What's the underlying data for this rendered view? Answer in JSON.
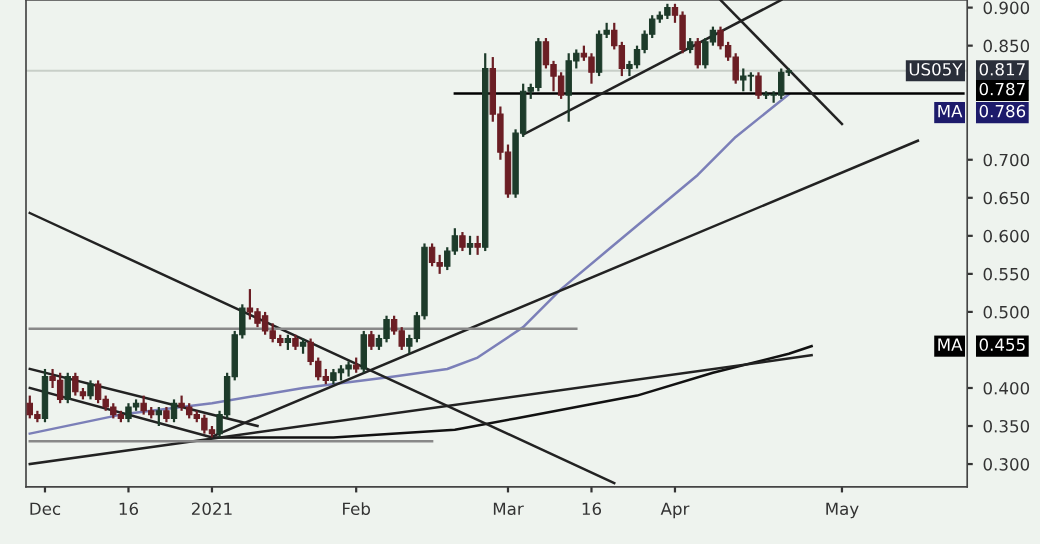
{
  "chart_data": {
    "type": "candlestick",
    "categories": [
      null,
      null,
      "Dec",
      null,
      null,
      null,
      null,
      null,
      null,
      null,
      null,
      null,
      null,
      "16",
      null,
      null,
      null,
      null,
      null,
      null,
      null,
      null,
      null,
      null,
      "2021",
      null,
      null,
      null,
      null,
      null,
      null,
      null,
      null,
      null,
      null,
      null,
      null,
      null,
      null,
      null,
      null,
      null,
      null,
      "Feb",
      null,
      null,
      null,
      null,
      null,
      null,
      null,
      null,
      null,
      null,
      null,
      null,
      null,
      null,
      null,
      null,
      null,
      null,
      null,
      "Mar",
      null,
      null,
      null,
      null,
      null,
      null,
      null,
      null,
      null,
      null,
      "16",
      null,
      null,
      null,
      null,
      null,
      null,
      null,
      null,
      null,
      null,
      "Apr",
      null,
      null,
      null,
      null,
      null,
      null,
      null,
      null,
      null,
      null,
      null,
      null,
      null,
      null,
      null,
      null,
      null,
      null,
      null,
      null,
      null,
      "May",
      null,
      null,
      null,
      null,
      null,
      null,
      null,
      null,
      null,
      null,
      null,
      null,
      null,
      null,
      null,
      null
    ],
    "ohlc": [
      [
        0.38,
        0.39,
        0.36,
        0.365
      ],
      [
        0.365,
        0.37,
        0.355,
        0.36
      ],
      [
        0.36,
        0.425,
        0.355,
        0.415
      ],
      [
        0.415,
        0.425,
        0.4,
        0.41
      ],
      [
        0.41,
        0.42,
        0.38,
        0.385
      ],
      [
        0.385,
        0.42,
        0.38,
        0.415
      ],
      [
        0.415,
        0.42,
        0.39,
        0.395
      ],
      [
        0.395,
        0.4,
        0.385,
        0.39
      ],
      [
        0.39,
        0.41,
        0.385,
        0.405
      ],
      [
        0.405,
        0.41,
        0.38,
        0.385
      ],
      [
        0.385,
        0.39,
        0.37,
        0.375
      ],
      [
        0.375,
        0.38,
        0.36,
        0.365
      ],
      [
        0.365,
        0.37,
        0.355,
        0.36
      ],
      [
        0.36,
        0.38,
        0.355,
        0.375
      ],
      [
        0.375,
        0.385,
        0.37,
        0.38
      ],
      [
        0.38,
        0.39,
        0.365,
        0.37
      ],
      [
        0.37,
        0.375,
        0.36,
        0.365
      ],
      [
        0.365,
        0.375,
        0.35,
        0.37
      ],
      [
        0.37,
        0.375,
        0.355,
        0.36
      ],
      [
        0.36,
        0.385,
        0.355,
        0.38
      ],
      [
        0.38,
        0.39,
        0.37,
        0.375
      ],
      [
        0.375,
        0.38,
        0.36,
        0.365
      ],
      [
        0.365,
        0.37,
        0.355,
        0.36
      ],
      [
        0.36,
        0.365,
        0.34,
        0.345
      ],
      [
        0.345,
        0.35,
        0.335,
        0.34
      ],
      [
        0.34,
        0.37,
        0.335,
        0.365
      ],
      [
        0.365,
        0.42,
        0.36,
        0.415
      ],
      [
        0.415,
        0.475,
        0.41,
        0.47
      ],
      [
        0.47,
        0.51,
        0.465,
        0.505
      ],
      [
        0.505,
        0.53,
        0.49,
        0.5
      ],
      [
        0.5,
        0.505,
        0.48,
        0.485
      ],
      [
        0.495,
        0.5,
        0.47,
        0.475
      ],
      [
        0.475,
        0.485,
        0.46,
        0.465
      ],
      [
        0.465,
        0.47,
        0.455,
        0.46
      ],
      [
        0.46,
        0.47,
        0.45,
        0.465
      ],
      [
        0.465,
        0.47,
        0.45,
        0.455
      ],
      [
        0.455,
        0.465,
        0.445,
        0.46
      ],
      [
        0.46,
        0.465,
        0.43,
        0.435
      ],
      [
        0.435,
        0.44,
        0.41,
        0.415
      ],
      [
        0.415,
        0.425,
        0.405,
        0.41
      ],
      [
        0.41,
        0.425,
        0.405,
        0.42
      ],
      [
        0.42,
        0.43,
        0.41,
        0.425
      ],
      [
        0.425,
        0.435,
        0.415,
        0.43
      ],
      [
        0.43,
        0.44,
        0.42,
        0.425
      ],
      [
        0.425,
        0.475,
        0.42,
        0.47
      ],
      [
        0.47,
        0.475,
        0.45,
        0.455
      ],
      [
        0.455,
        0.47,
        0.45,
        0.465
      ],
      [
        0.465,
        0.495,
        0.46,
        0.49
      ],
      [
        0.49,
        0.495,
        0.47,
        0.475
      ],
      [
        0.475,
        0.48,
        0.45,
        0.455
      ],
      [
        0.455,
        0.47,
        0.445,
        0.465
      ],
      [
        0.465,
        0.5,
        0.46,
        0.495
      ],
      [
        0.495,
        0.59,
        0.49,
        0.585
      ],
      [
        0.585,
        0.59,
        0.56,
        0.565
      ],
      [
        0.565,
        0.575,
        0.55,
        0.56
      ],
      [
        0.56,
        0.585,
        0.555,
        0.58
      ],
      [
        0.58,
        0.61,
        0.575,
        0.6
      ],
      [
        0.6,
        0.605,
        0.58,
        0.585
      ],
      [
        0.585,
        0.6,
        0.575,
        0.59
      ],
      [
        0.59,
        0.6,
        0.575,
        0.585
      ],
      [
        0.585,
        0.84,
        0.58,
        0.82
      ],
      [
        0.82,
        0.835,
        0.75,
        0.76
      ],
      [
        0.76,
        0.77,
        0.7,
        0.71
      ],
      [
        0.71,
        0.72,
        0.65,
        0.655
      ],
      [
        0.655,
        0.74,
        0.65,
        0.735
      ],
      [
        0.735,
        0.8,
        0.73,
        0.79
      ],
      [
        0.79,
        0.8,
        0.78,
        0.795
      ],
      [
        0.795,
        0.86,
        0.79,
        0.855
      ],
      [
        0.855,
        0.86,
        0.82,
        0.825
      ],
      [
        0.825,
        0.83,
        0.79,
        0.81
      ],
      [
        0.81,
        0.815,
        0.78,
        0.785
      ],
      [
        0.785,
        0.84,
        0.75,
        0.83
      ],
      [
        0.83,
        0.845,
        0.82,
        0.84
      ],
      [
        0.84,
        0.85,
        0.83,
        0.835
      ],
      [
        0.835,
        0.84,
        0.8,
        0.815
      ],
      [
        0.815,
        0.87,
        0.81,
        0.865
      ],
      [
        0.865,
        0.88,
        0.86,
        0.87
      ],
      [
        0.87,
        0.88,
        0.845,
        0.85
      ],
      [
        0.85,
        0.855,
        0.81,
        0.82
      ],
      [
        0.82,
        0.83,
        0.81,
        0.825
      ],
      [
        0.825,
        0.85,
        0.82,
        0.845
      ],
      [
        0.845,
        0.87,
        0.84,
        0.865
      ],
      [
        0.865,
        0.89,
        0.86,
        0.885
      ],
      [
        0.885,
        0.895,
        0.88,
        0.89
      ],
      [
        0.89,
        0.905,
        0.885,
        0.9
      ],
      [
        0.9,
        0.905,
        0.88,
        0.89
      ],
      [
        0.89,
        0.895,
        0.84,
        0.845
      ],
      [
        0.845,
        0.86,
        0.84,
        0.855
      ],
      [
        0.855,
        0.86,
        0.82,
        0.825
      ],
      [
        0.825,
        0.86,
        0.82,
        0.855
      ],
      [
        0.855,
        0.875,
        0.85,
        0.87
      ],
      [
        0.87,
        0.875,
        0.845,
        0.85
      ],
      [
        0.85,
        0.855,
        0.83,
        0.835
      ],
      [
        0.835,
        0.84,
        0.8,
        0.805
      ],
      [
        0.805,
        0.82,
        0.79,
        0.81
      ],
      [
        0.81,
        0.815,
        0.79,
        0.81
      ],
      [
        0.81,
        0.815,
        0.78,
        0.785
      ],
      [
        0.785,
        0.79,
        0.78,
        0.785
      ],
      [
        0.785,
        0.79,
        0.775,
        0.785
      ],
      [
        0.785,
        0.82,
        0.78,
        0.815
      ],
      [
        0.815,
        0.82,
        0.81,
        0.817
      ],
      null,
      null,
      null,
      null,
      null,
      null,
      null,
      null,
      null,
      null,
      null,
      null,
      null,
      null,
      null,
      null,
      null,
      null,
      null,
      null,
      null,
      null,
      null
    ],
    "series": [
      {
        "type": "line",
        "color": "#7b7fb8",
        "values": [
          0.34,
          null,
          null,
          null,
          null,
          null,
          null,
          null,
          null,
          null,
          null,
          null,
          0.365,
          null,
          null,
          null,
          null,
          null,
          null,
          null,
          null,
          null,
          null,
          null,
          0.38,
          null,
          null,
          null,
          null,
          null,
          null,
          null,
          null,
          null,
          null,
          null,
          0.4,
          null,
          null,
          null,
          null,
          null,
          null,
          null,
          null,
          null,
          null,
          null,
          0.415,
          null,
          null,
          null,
          null,
          null,
          null,
          0.425,
          null,
          null,
          null,
          0.44,
          null,
          null,
          null,
          null,
          null,
          0.48,
          null,
          null,
          null,
          null,
          0.53,
          null,
          null,
          null,
          null,
          null,
          0.58,
          null,
          null,
          null,
          null,
          null,
          0.63,
          null,
          null,
          null,
          null,
          null,
          0.68,
          null,
          null,
          null,
          null,
          0.73,
          null,
          null,
          null,
          null,
          null,
          null,
          0.786,
          null,
          null,
          null,
          null,
          null,
          null,
          null,
          null,
          null,
          null,
          null,
          null,
          null,
          null,
          null,
          null,
          null,
          null,
          null,
          null,
          null,
          null,
          null
        ]
      },
      {
        "type": "line",
        "color": "#111111",
        "values": [
          null,
          null,
          null,
          null,
          null,
          null,
          null,
          null,
          null,
          null,
          null,
          null,
          null,
          null,
          null,
          null,
          null,
          null,
          null,
          null,
          null,
          null,
          null,
          null,
          0.335,
          null,
          null,
          null,
          null,
          null,
          null,
          null,
          null,
          null,
          null,
          null,
          null,
          null,
          null,
          null,
          0.335,
          null,
          null,
          null,
          null,
          null,
          null,
          null,
          null,
          null,
          null,
          null,
          null,
          null,
          null,
          null,
          0.345,
          null,
          null,
          null,
          null,
          null,
          null,
          null,
          0.36,
          null,
          null,
          null,
          null,
          null,
          null,
          null,
          0.375,
          null,
          null,
          null,
          null,
          null,
          null,
          null,
          0.39,
          null,
          null,
          null,
          null,
          null,
          null,
          null,
          null,
          null,
          0.42,
          null,
          null,
          null,
          null,
          null,
          null,
          null,
          null,
          null,
          0.445,
          null,
          null,
          0.455,
          null,
          null,
          null,
          null,
          null,
          null,
          null,
          null,
          null,
          null,
          null,
          null,
          null,
          null,
          null,
          null,
          null,
          null,
          null,
          null
        ]
      },
      {
        "type": "line",
        "color": "#000000",
        "values": [
          null,
          null,
          null,
          null,
          null,
          null,
          null,
          null,
          null,
          null,
          null,
          null,
          null,
          null,
          null,
          null,
          null,
          null,
          null,
          null,
          null,
          null,
          null,
          null,
          null,
          null,
          null,
          null,
          null,
          null,
          null,
          null,
          null,
          null,
          null,
          null,
          null,
          null,
          null,
          null,
          null,
          null,
          null,
          null,
          null,
          null,
          null,
          null,
          null,
          null,
          null,
          null,
          null,
          null,
          null,
          null,
          0.787,
          null,
          null,
          null,
          null,
          null,
          null,
          null,
          null,
          null,
          null,
          null,
          null,
          null,
          null,
          null,
          null,
          null,
          null,
          null,
          null,
          null,
          null,
          null,
          null,
          null,
          null,
          null,
          null,
          null,
          null,
          null,
          null,
          null,
          null,
          null,
          null,
          null,
          null,
          null,
          null,
          null,
          null,
          null,
          null,
          null,
          null,
          null,
          null,
          null,
          null,
          null,
          null,
          null,
          null,
          null,
          null,
          null,
          null,
          null,
          null,
          null,
          null,
          null,
          null,
          null,
          null,
          0.787
        ]
      },
      {
        "type": "line",
        "color": "#222222",
        "values": [
          0.63,
          null,
          null,
          null,
          null,
          null,
          null,
          null,
          null,
          null,
          null,
          null,
          null,
          null,
          null,
          null,
          null,
          null,
          null,
          null,
          null,
          null,
          null,
          null,
          null,
          null,
          null,
          null,
          null,
          null,
          null,
          null,
          null,
          null,
          null,
          null,
          null,
          null,
          null,
          null,
          null,
          null,
          null,
          null,
          null,
          null,
          null,
          null,
          null,
          null,
          null,
          null,
          null,
          null,
          null,
          null,
          null,
          null,
          null,
          null,
          null,
          null,
          null,
          null,
          null,
          null,
          null,
          null,
          null,
          null,
          null,
          null,
          null,
          null,
          null,
          null,
          null,
          0.275,
          null,
          null,
          null,
          null,
          null,
          null,
          null,
          null,
          null,
          null,
          null,
          null,
          null,
          null,
          null,
          null,
          null,
          null,
          null,
          null,
          null,
          null,
          null,
          null,
          null,
          null,
          null,
          null,
          null,
          null,
          null,
          null,
          null,
          null,
          null,
          null,
          null,
          null,
          null,
          null,
          null,
          null,
          null,
          null,
          null,
          null
        ]
      },
      {
        "type": "line",
        "color": "#222222",
        "values": [
          0.425,
          null,
          null,
          null,
          null,
          null,
          null,
          null,
          null,
          null,
          null,
          null,
          null,
          null,
          null,
          null,
          null,
          null,
          null,
          null,
          null,
          null,
          null,
          null,
          null,
          null,
          null,
          null,
          null,
          null,
          0.35,
          null,
          null,
          null,
          null,
          null,
          null,
          null,
          null,
          null,
          null,
          null,
          null,
          null,
          null,
          null,
          null,
          null,
          null,
          null,
          null,
          null,
          null,
          null,
          null,
          null,
          null,
          null,
          null,
          null,
          null,
          null,
          null,
          null,
          null,
          null,
          null,
          null,
          null,
          null,
          null,
          null,
          null,
          null,
          null,
          null,
          null,
          null,
          null,
          null,
          null,
          null,
          null,
          null,
          null,
          null,
          null,
          null,
          null,
          null,
          null,
          null,
          null,
          null,
          null,
          null,
          null,
          null,
          null,
          null,
          null,
          null,
          null,
          null,
          null,
          null,
          null,
          null,
          null,
          null,
          null,
          null,
          null,
          null,
          null,
          null,
          null,
          null,
          null,
          null,
          null,
          null,
          null,
          null
        ]
      },
      {
        "type": "line",
        "color": "#222222",
        "values": [
          0.4,
          null,
          null,
          null,
          null,
          null,
          null,
          null,
          null,
          null,
          null,
          null,
          null,
          null,
          null,
          null,
          null,
          null,
          null,
          null,
          null,
          null,
          null,
          null,
          0.335,
          null,
          null,
          null,
          null,
          null,
          null,
          null,
          null,
          null,
          null,
          null,
          null,
          null,
          null,
          null,
          null,
          null,
          null,
          null,
          null,
          null,
          null,
          null,
          null,
          null,
          null,
          null,
          null,
          null,
          null,
          null,
          null,
          null,
          null,
          null,
          null,
          null,
          null,
          null,
          null,
          null,
          null,
          null,
          null,
          null,
          null,
          null,
          null,
          null,
          null,
          null,
          null,
          null,
          null,
          null,
          null,
          null,
          null,
          null,
          null,
          null,
          null,
          null,
          null,
          null,
          null,
          null,
          null,
          null,
          null,
          null,
          null,
          null,
          null,
          null,
          null,
          null,
          null,
          null,
          null,
          null,
          null,
          null,
          null,
          null,
          null,
          null,
          null,
          null,
          null,
          null,
          null,
          null,
          null,
          null,
          null,
          null,
          null,
          null
        ]
      },
      {
        "type": "line",
        "color": "#222222",
        "values": [
          0.3,
          null,
          null,
          null,
          null,
          null,
          null,
          null,
          null,
          null,
          null,
          null,
          null,
          null,
          null,
          null,
          null,
          null,
          null,
          null,
          null,
          null,
          null,
          null,
          null,
          null,
          null,
          null,
          null,
          null,
          null,
          null,
          null,
          null,
          null,
          null,
          null,
          null,
          null,
          null,
          null,
          null,
          null,
          null,
          null,
          null,
          null,
          null,
          null,
          null,
          null,
          null,
          null,
          null,
          null,
          null,
          null,
          null,
          null,
          null,
          null,
          null,
          null,
          null,
          null,
          null,
          null,
          null,
          null,
          null,
          null,
          null,
          null,
          null,
          null,
          null,
          null,
          null,
          null,
          null,
          null,
          null,
          null,
          null,
          null,
          null,
          null,
          null,
          null,
          null,
          null,
          null,
          null,
          null,
          null,
          null,
          null,
          null,
          null,
          null,
          null,
          null,
          null,
          0.443,
          null,
          null,
          null,
          null,
          null,
          null,
          null,
          null,
          null,
          null,
          null,
          null,
          null,
          null,
          null,
          null,
          null,
          null,
          null,
          null
        ]
      },
      {
        "type": "line",
        "color": "#222222",
        "values": [
          null,
          null,
          null,
          null,
          null,
          null,
          null,
          null,
          null,
          null,
          null,
          null,
          null,
          null,
          null,
          null,
          null,
          null,
          null,
          null,
          null,
          null,
          null,
          null,
          0.336,
          null,
          null,
          null,
          null,
          null,
          null,
          null,
          null,
          null,
          null,
          null,
          null,
          null,
          null,
          null,
          null,
          null,
          null,
          null,
          null,
          null,
          null,
          null,
          null,
          null,
          null,
          null,
          null,
          null,
          null,
          null,
          null,
          null,
          null,
          null,
          null,
          null,
          null,
          null,
          null,
          null,
          null,
          null,
          null,
          null,
          null,
          null,
          null,
          null,
          null,
          null,
          null,
          null,
          null,
          null,
          null,
          null,
          null,
          null,
          null,
          null,
          null,
          null,
          null,
          null,
          null,
          null,
          null,
          null,
          null,
          null,
          null,
          null,
          null,
          null,
          null,
          null,
          null,
          null,
          null,
          null,
          null,
          null,
          null,
          null,
          null,
          null,
          null,
          null,
          null,
          null,
          null,
          0.725,
          null,
          null,
          null,
          null,
          null,
          null
        ]
      },
      {
        "type": "line",
        "color": "#888888",
        "values": [
          0.478,
          null,
          null,
          null,
          null,
          null,
          null,
          null,
          null,
          null,
          null,
          null,
          null,
          null,
          null,
          null,
          null,
          null,
          null,
          null,
          null,
          null,
          null,
          null,
          null,
          null,
          null,
          null,
          null,
          null,
          null,
          null,
          null,
          null,
          null,
          null,
          null,
          null,
          null,
          null,
          null,
          null,
          null,
          null,
          null,
          null,
          null,
          null,
          null,
          null,
          null,
          null,
          null,
          null,
          null,
          null,
          null,
          null,
          null,
          null,
          null,
          null,
          null,
          null,
          null,
          null,
          null,
          null,
          null,
          null,
          null,
          null,
          0.478,
          null,
          null,
          null,
          null,
          null,
          null,
          null,
          null,
          null,
          null,
          null,
          null,
          null,
          null,
          null,
          null,
          null,
          null,
          null,
          null,
          null,
          null,
          null,
          null,
          null,
          null,
          null,
          null,
          null,
          null,
          null,
          null,
          null,
          null,
          null,
          null,
          null,
          null,
          null,
          null,
          null,
          null,
          null,
          null,
          null,
          null,
          null,
          null,
          null,
          null,
          null
        ]
      },
      {
        "type": "line",
        "color": "#888888",
        "values": [
          0.33,
          null,
          null,
          null,
          null,
          null,
          null,
          null,
          null,
          null,
          null,
          null,
          null,
          null,
          null,
          null,
          null,
          null,
          null,
          null,
          null,
          null,
          null,
          null,
          null,
          null,
          null,
          null,
          null,
          null,
          null,
          null,
          null,
          null,
          null,
          null,
          null,
          null,
          null,
          null,
          null,
          null,
          null,
          null,
          null,
          null,
          null,
          null,
          null,
          null,
          null,
          null,
          null,
          0.33,
          null,
          null,
          null,
          null,
          null,
          null,
          null,
          null,
          null,
          null,
          null,
          null,
          null,
          null,
          null,
          null,
          null,
          null,
          null,
          null,
          null,
          null,
          null,
          null,
          null,
          null,
          null,
          null,
          null,
          null,
          null,
          null,
          null,
          null,
          null,
          null,
          null,
          null,
          null,
          null,
          null,
          null,
          null,
          null,
          null,
          null,
          null,
          null,
          null,
          null,
          null,
          null,
          null,
          null,
          null,
          null,
          null,
          null,
          null,
          null,
          null,
          null,
          null,
          null,
          null,
          null,
          null,
          null,
          null,
          null
        ]
      },
      {
        "type": "line",
        "color": "#222222",
        "values": [
          null,
          null,
          null,
          null,
          null,
          null,
          null,
          null,
          null,
          null,
          null,
          null,
          null,
          null,
          null,
          null,
          null,
          null,
          null,
          null,
          null,
          null,
          null,
          null,
          null,
          null,
          null,
          null,
          null,
          null,
          null,
          null,
          null,
          null,
          null,
          null,
          null,
          null,
          null,
          null,
          null,
          null,
          null,
          null,
          null,
          null,
          null,
          null,
          null,
          null,
          null,
          null,
          null,
          null,
          null,
          null,
          null,
          null,
          null,
          null,
          null,
          null,
          null,
          null,
          null,
          0.733,
          null,
          null,
          null,
          null,
          null,
          null,
          null,
          null,
          null,
          null,
          null,
          null,
          null,
          null,
          null,
          null,
          null,
          null,
          null,
          null,
          null,
          null,
          null,
          null,
          null,
          null,
          null,
          null,
          null,
          null,
          null,
          null,
          null,
          0.91,
          null,
          null,
          null,
          null,
          null,
          null,
          null,
          null,
          null,
          null,
          null,
          null,
          null,
          null,
          null,
          null,
          null,
          null,
          null,
          null,
          null,
          null,
          null,
          null
        ]
      },
      {
        "type": "line",
        "color": "#222222",
        "values": [
          null,
          null,
          null,
          null,
          null,
          null,
          null,
          null,
          null,
          null,
          null,
          null,
          null,
          null,
          null,
          null,
          null,
          null,
          null,
          null,
          null,
          null,
          null,
          null,
          null,
          null,
          null,
          null,
          null,
          null,
          null,
          null,
          null,
          null,
          null,
          null,
          null,
          null,
          null,
          null,
          null,
          null,
          null,
          null,
          null,
          null,
          null,
          null,
          null,
          null,
          null,
          null,
          null,
          null,
          null,
          null,
          null,
          null,
          null,
          null,
          null,
          null,
          null,
          null,
          null,
          null,
          null,
          null,
          null,
          null,
          null,
          null,
          null,
          null,
          null,
          null,
          null,
          null,
          null,
          null,
          null,
          null,
          null,
          null,
          null,
          null,
          null,
          null,
          null,
          null,
          null,
          0.91,
          null,
          null,
          null,
          null,
          null,
          null,
          null,
          null,
          null,
          null,
          null,
          null,
          null,
          null,
          null,
          0.747,
          null,
          null,
          null,
          null,
          null,
          null,
          null,
          null,
          null,
          null,
          null,
          null,
          null,
          null,
          null,
          null
        ]
      }
    ],
    "ref_lines": [
      {
        "axis": "y",
        "value": 0.817,
        "color": "#c8cfc8"
      }
    ],
    "annotations": [
      "US05Y",
      "0.817",
      "0.787",
      "MA",
      "0.786",
      "MA",
      "0.455"
    ],
    "ylim": [
      0.27,
      0.91
    ],
    "yticks": [
      {
        "value": 0.3,
        "label": "0.300"
      },
      {
        "value": 0.35,
        "label": "0.350"
      },
      {
        "value": 0.4,
        "label": "0.400"
      },
      {
        "value": 0.5,
        "label": "0.500"
      },
      {
        "value": 0.55,
        "label": "0.550"
      },
      {
        "value": 0.6,
        "label": "0.600"
      },
      {
        "value": 0.65,
        "label": "0.650"
      },
      {
        "value": 0.7,
        "label": "0.700"
      },
      {
        "value": 0.85,
        "label": "0.850"
      },
      {
        "value": 0.9,
        "label": "0.900"
      }
    ],
    "grid": false,
    "legend": false
  }
}
